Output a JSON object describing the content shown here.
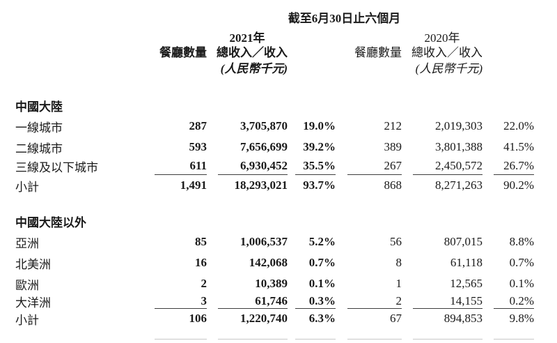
{
  "page": {
    "background": "#ffffff",
    "text_color": "#1a1a1a",
    "rule_color": "#3d3d3d",
    "faint_rule_color": "#c8c8c8"
  },
  "header": {
    "period_title": "截至6月30日止六個月",
    "groups": [
      {
        "year": "2021年",
        "restaurants_label": "餐廳數量",
        "revenue_label": "總收入／收入",
        "unit_label": "(人民幣千元)"
      },
      {
        "year": "2020年",
        "restaurants_label": "餐廳數量",
        "revenue_label": "總收入／收入",
        "unit_label": "(人民幣千元)"
      }
    ]
  },
  "table": {
    "sections": [
      {
        "title": "中國大陸",
        "rows": [
          {
            "label": "一線城市",
            "c1": "287",
            "c2": "3,705,870",
            "c3": "19.0%",
            "c4": "212",
            "c5": "2,019,303",
            "c6": "22.0%"
          },
          {
            "label": "二線城市",
            "c1": "593",
            "c2": "7,656,699",
            "c3": "39.2%",
            "c4": "389",
            "c5": "3,801,388",
            "c6": "41.5%"
          },
          {
            "label": "三線及以下城市",
            "c1": "611",
            "c2": "6,930,452",
            "c3": "35.5%",
            "c4": "267",
            "c5": "2,450,572",
            "c6": "26.7%"
          }
        ],
        "subtotal": {
          "label": "小計",
          "c1": "1,491",
          "c2": "18,293,021",
          "c3": "93.7%",
          "c4": "868",
          "c5": "8,271,263",
          "c6": "90.2%"
        }
      },
      {
        "title": "中國大陸以外",
        "rows": [
          {
            "label": "亞洲",
            "c1": "85",
            "c2": "1,006,537",
            "c3": "5.2%",
            "c4": "56",
            "c5": "807,015",
            "c6": "8.8%"
          },
          {
            "label": "北美洲",
            "c1": "16",
            "c2": "142,068",
            "c3": "0.7%",
            "c4": "8",
            "c5": "61,118",
            "c6": "0.7%"
          },
          {
            "label": "歐洲",
            "c1": "2",
            "c2": "10,389",
            "c3": "0.1%",
            "c4": "1",
            "c5": "12,565",
            "c6": "0.1%"
          },
          {
            "label": "大洋洲",
            "c1": "3",
            "c2": "61,746",
            "c3": "0.3%",
            "c4": "2",
            "c5": "14,155",
            "c6": "0.2%"
          }
        ],
        "subtotal": {
          "label": "小計",
          "c1": "106",
          "c2": "1,220,740",
          "c3": "6.3%",
          "c4": "67",
          "c5": "894,853",
          "c6": "9.8%"
        }
      }
    ]
  }
}
